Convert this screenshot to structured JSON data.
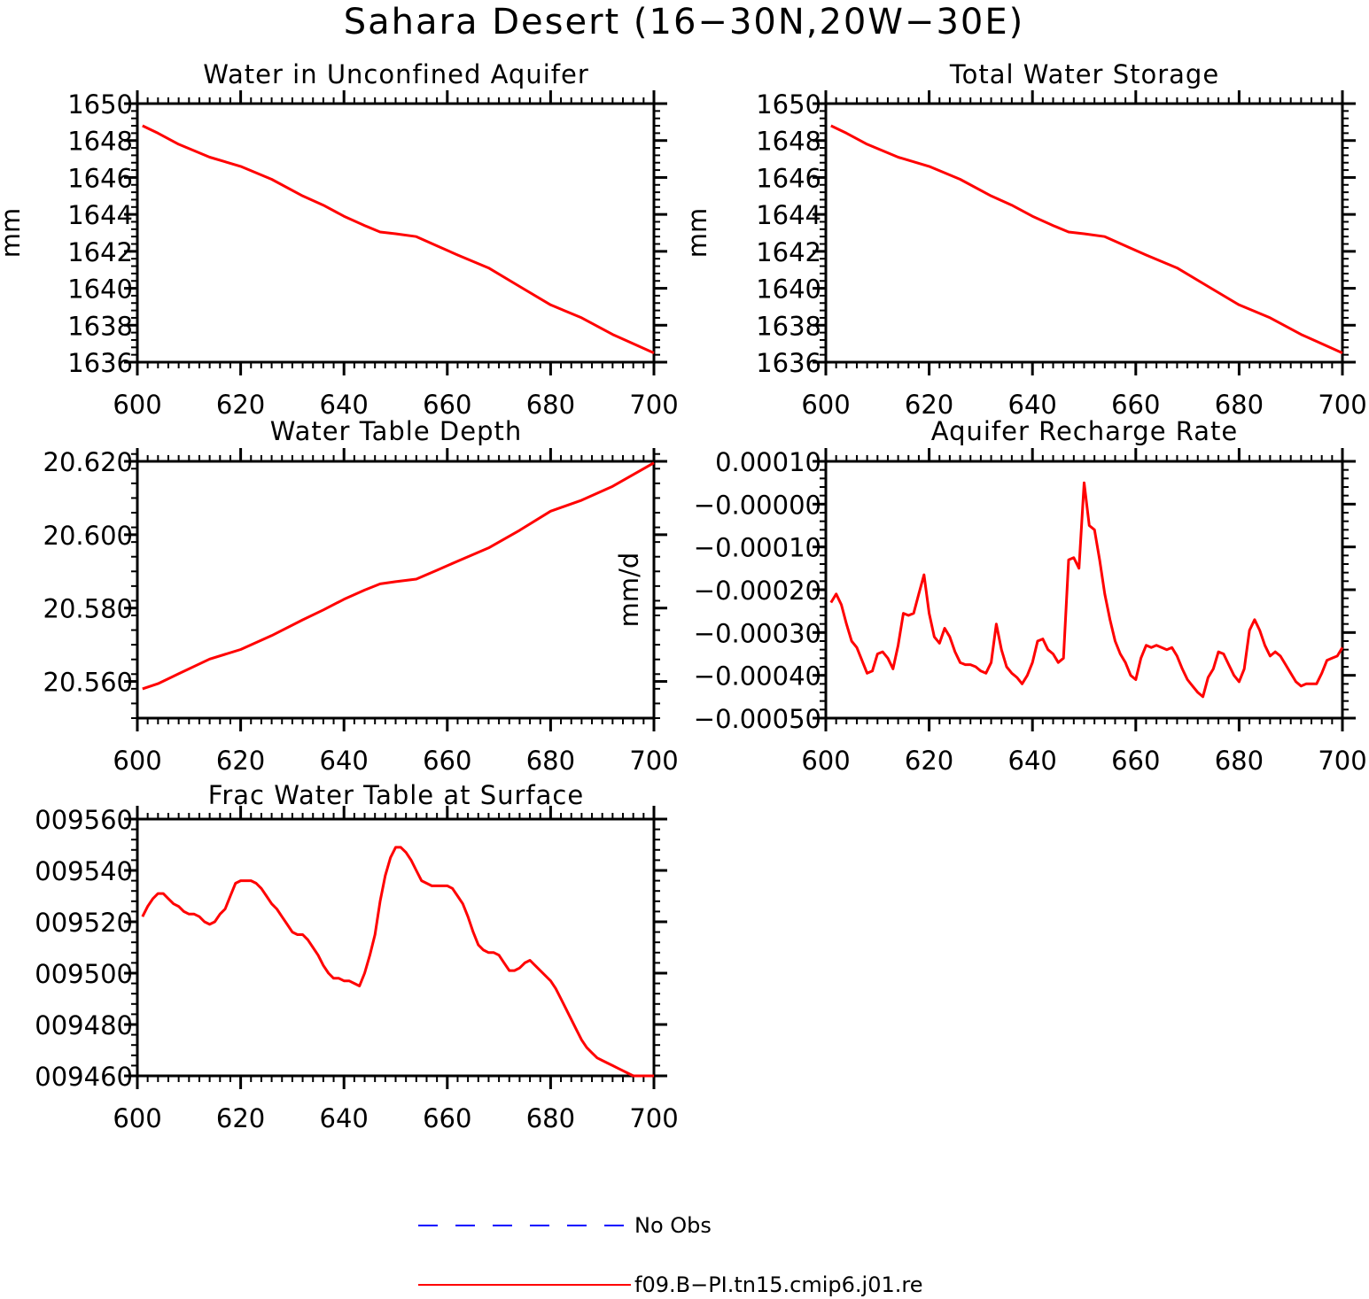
{
  "figure": {
    "title": "Sahara Desert (16−30N,20W−30E)",
    "colors": {
      "model": "#ff0000",
      "obs": "#0000ff",
      "axes": "#000000"
    }
  },
  "legend": [
    {
      "label": "No Obs",
      "style": "dashed",
      "color": "#0000ff"
    },
    {
      "label": "f09.B−PI.tn15.cmip6.j01.re",
      "style": "solid",
      "color": "#ff0000"
    }
  ],
  "chart_data": [
    {
      "type": "line",
      "title": "Water in Unconfined Aquifer",
      "ylabel": "mm",
      "xlim": [
        600,
        700
      ],
      "ylim": [
        1636,
        1650
      ],
      "xticks": [
        600,
        620,
        640,
        660,
        680,
        700
      ],
      "xtick_labels": [
        "600",
        "620",
        "640",
        "660",
        "680",
        "700"
      ],
      "yticks": [
        1636,
        1638,
        1640,
        1642,
        1644,
        1646,
        1648,
        1650
      ],
      "ytick_labels": [
        "1636",
        "1638",
        "1640",
        "1642",
        "1644",
        "1646",
        "1648",
        "1650"
      ],
      "series": [
        {
          "color": "#ff0000",
          "x": [
            601,
            604,
            608,
            614,
            620,
            626,
            632,
            636,
            640,
            644,
            647,
            650,
            654,
            658,
            662,
            668,
            674,
            680,
            686,
            692,
            700
          ],
          "y": [
            1648.8,
            1648.4,
            1647.8,
            1647.1,
            1646.6,
            1645.9,
            1645.0,
            1644.5,
            1643.9,
            1643.4,
            1643.05,
            1642.95,
            1642.8,
            1642.3,
            1641.8,
            1641.1,
            1640.1,
            1639.1,
            1638.4,
            1637.5,
            1636.5
          ]
        }
      ]
    },
    {
      "type": "line",
      "title": "Total Water Storage",
      "ylabel": "mm",
      "xlim": [
        600,
        700
      ],
      "ylim": [
        1636,
        1650
      ],
      "xticks": [
        600,
        620,
        640,
        660,
        680,
        700
      ],
      "xtick_labels": [
        "600",
        "620",
        "640",
        "660",
        "680",
        "700"
      ],
      "yticks": [
        1636,
        1638,
        1640,
        1642,
        1644,
        1646,
        1648,
        1650
      ],
      "ytick_labels": [
        "1636",
        "1638",
        "1640",
        "1642",
        "1644",
        "1646",
        "1648",
        "1650"
      ],
      "series": [
        {
          "color": "#ff0000",
          "x": [
            601,
            604,
            608,
            614,
            620,
            626,
            632,
            636,
            640,
            644,
            647,
            650,
            654,
            658,
            662,
            668,
            674,
            680,
            686,
            692,
            700
          ],
          "y": [
            1648.8,
            1648.4,
            1647.8,
            1647.1,
            1646.6,
            1645.9,
            1645.0,
            1644.5,
            1643.9,
            1643.4,
            1643.05,
            1642.95,
            1642.8,
            1642.3,
            1641.8,
            1641.1,
            1640.1,
            1639.1,
            1638.4,
            1637.5,
            1636.5
          ]
        }
      ]
    },
    {
      "type": "line",
      "title": "Water Table Depth",
      "ylabel": "",
      "xlim": [
        600,
        700
      ],
      "ylim": [
        20.55,
        20.62
      ],
      "xticks": [
        600,
        620,
        640,
        660,
        680,
        700
      ],
      "xtick_labels": [
        "600",
        "620",
        "640",
        "660",
        "680",
        "700"
      ],
      "yticks": [
        20.56,
        20.58,
        20.6,
        20.62
      ],
      "ytick_labels": [
        "20.560",
        "20.580",
        "20.600",
        "20.620"
      ],
      "series": [
        {
          "color": "#ff0000",
          "x": [
            601,
            604,
            608,
            614,
            620,
            626,
            632,
            636,
            640,
            644,
            647,
            650,
            654,
            658,
            662,
            668,
            674,
            680,
            686,
            692,
            700
          ],
          "y": [
            20.558,
            20.5594,
            20.5621,
            20.5661,
            20.5687,
            20.5725,
            20.5768,
            20.5795,
            20.5824,
            20.5849,
            20.5866,
            20.5872,
            20.5879,
            20.5903,
            20.5928,
            20.5964,
            20.6012,
            20.6064,
            20.6094,
            20.6132,
            20.6196
          ]
        }
      ]
    },
    {
      "type": "line",
      "title": "Aquifer Recharge Rate",
      "ylabel": "mm/d",
      "xlim": [
        600,
        700
      ],
      "ylim": [
        -0.0005,
        0.0001
      ],
      "xticks": [
        600,
        620,
        640,
        660,
        680,
        700
      ],
      "xtick_labels": [
        "600",
        "620",
        "640",
        "660",
        "680",
        "700"
      ],
      "yticks": [
        -0.0005,
        -0.0004,
        -0.0003,
        -0.0002,
        -0.0001,
        0.0,
        0.0001
      ],
      "ytick_labels": [
        "−0.00050",
        "−0.00040",
        "−0.00030",
        "−0.00020",
        "−0.00010",
        "−0.00000",
        "0.00010"
      ],
      "series": [
        {
          "color": "#ff0000",
          "x": [
            601,
            602,
            603,
            604,
            605,
            606,
            607,
            608,
            609,
            610,
            611,
            612,
            613,
            614,
            615,
            616,
            617,
            618,
            619,
            620,
            621,
            622,
            623,
            624,
            625,
            626,
            627,
            628,
            629,
            630,
            631,
            632,
            633,
            634,
            635,
            636,
            637,
            638,
            639,
            640,
            641,
            642,
            643,
            644,
            645,
            646,
            647,
            648,
            649,
            650,
            651,
            652,
            653,
            654,
            655,
            656,
            657,
            658,
            659,
            660,
            661,
            662,
            663,
            664,
            665,
            666,
            667,
            668,
            669,
            670,
            671,
            672,
            673,
            674,
            675,
            676,
            677,
            678,
            679,
            680,
            681,
            682,
            683,
            684,
            685,
            686,
            687,
            688,
            689,
            690,
            691,
            692,
            693,
            694,
            695,
            696,
            697,
            698,
            699,
            700
          ],
          "y": [
            -0.00023,
            -0.00021,
            -0.000235,
            -0.00028,
            -0.00032,
            -0.000335,
            -0.000365,
            -0.000395,
            -0.00039,
            -0.00035,
            -0.000345,
            -0.00036,
            -0.000385,
            -0.00033,
            -0.000255,
            -0.00026,
            -0.000255,
            -0.00021,
            -0.000165,
            -0.000255,
            -0.00031,
            -0.000325,
            -0.00029,
            -0.00031,
            -0.000345,
            -0.00037,
            -0.000375,
            -0.000375,
            -0.00038,
            -0.00039,
            -0.000395,
            -0.00037,
            -0.00028,
            -0.00034,
            -0.00038,
            -0.000395,
            -0.000405,
            -0.00042,
            -0.0004,
            -0.00037,
            -0.00032,
            -0.000315,
            -0.00034,
            -0.00035,
            -0.00037,
            -0.00036,
            -0.00013,
            -0.000125,
            -0.00015,
            5e-05,
            -5e-05,
            -6e-05,
            -0.00013,
            -0.00021,
            -0.00027,
            -0.00032,
            -0.00035,
            -0.00037,
            -0.0004,
            -0.00041,
            -0.00036,
            -0.00033,
            -0.000335,
            -0.00033,
            -0.000335,
            -0.00034,
            -0.000335,
            -0.000355,
            -0.000385,
            -0.00041,
            -0.000425,
            -0.00044,
            -0.00045,
            -0.000405,
            -0.000385,
            -0.000345,
            -0.00035,
            -0.000375,
            -0.0004,
            -0.000415,
            -0.000385,
            -0.000295,
            -0.00027,
            -0.000295,
            -0.00033,
            -0.000355,
            -0.000345,
            -0.000355,
            -0.000375,
            -0.000395,
            -0.000415,
            -0.000425,
            -0.00042,
            -0.00042,
            -0.00042,
            -0.000395,
            -0.000365,
            -0.00036,
            -0.000355,
            -0.000335
          ]
        }
      ]
    },
    {
      "type": "line",
      "title": "Frac Water Table at Surface",
      "ylabel": "",
      "xlim": [
        600,
        700
      ],
      "ylim": [
        0.00946,
        0.00956
      ],
      "xticks": [
        600,
        620,
        640,
        660,
        680,
        700
      ],
      "xtick_labels": [
        "600",
        "620",
        "640",
        "660",
        "680",
        "700"
      ],
      "yticks": [
        0.00946,
        0.00948,
        0.0095,
        0.00952,
        0.00954,
        0.00956
      ],
      "ytick_labels": [
        "009460",
        "009480",
        "009500",
        "009520",
        "009540",
        "009560"
      ],
      "series": [
        {
          "color": "#ff0000",
          "x": [
            601,
            602,
            603,
            604,
            605,
            606,
            607,
            608,
            609,
            610,
            611,
            612,
            613,
            614,
            615,
            616,
            617,
            618,
            619,
            620,
            621,
            622,
            623,
            624,
            625,
            626,
            627,
            628,
            629,
            630,
            631,
            632,
            633,
            634,
            635,
            636,
            637,
            638,
            639,
            640,
            641,
            642,
            643,
            644,
            645,
            646,
            647,
            648,
            649,
            650,
            651,
            652,
            653,
            654,
            655,
            656,
            657,
            658,
            659,
            660,
            661,
            662,
            663,
            664,
            665,
            666,
            667,
            668,
            669,
            670,
            671,
            672,
            673,
            674,
            675,
            676,
            677,
            678,
            679,
            680,
            681,
            682,
            683,
            684,
            685,
            686,
            687,
            688,
            689,
            690,
            691,
            692,
            693,
            694,
            695,
            696,
            697,
            698,
            699,
            700
          ],
          "y": [
            0.009522,
            0.009526,
            0.009529,
            0.009531,
            0.009531,
            0.009529,
            0.009527,
            0.009526,
            0.009524,
            0.009523,
            0.009523,
            0.009522,
            0.00952,
            0.009519,
            0.00952,
            0.009523,
            0.009525,
            0.00953,
            0.009535,
            0.009536,
            0.009536,
            0.009536,
            0.009535,
            0.009533,
            0.00953,
            0.009527,
            0.009525,
            0.009522,
            0.009519,
            0.009516,
            0.009515,
            0.009515,
            0.009513,
            0.00951,
            0.009507,
            0.009503,
            0.0095,
            0.009498,
            0.009498,
            0.009497,
            0.009497,
            0.009496,
            0.009495,
            0.0095,
            0.009507,
            0.009515,
            0.009528,
            0.009538,
            0.009545,
            0.009549,
            0.009549,
            0.009547,
            0.009544,
            0.00954,
            0.009536,
            0.009535,
            0.009534,
            0.009534,
            0.009534,
            0.009534,
            0.009533,
            0.00953,
            0.009527,
            0.009522,
            0.009516,
            0.009511,
            0.009509,
            0.009508,
            0.009508,
            0.009507,
            0.009504,
            0.009501,
            0.009501,
            0.009502,
            0.009504,
            0.009505,
            0.009503,
            0.009501,
            0.009499,
            0.009497,
            0.009494,
            0.00949,
            0.009486,
            0.009482,
            0.009478,
            0.009474,
            0.009471,
            0.009469,
            0.009467,
            0.009466,
            0.009465,
            0.009464,
            0.009463,
            0.009462,
            0.009461,
            0.00946,
            0.00946,
            0.00946,
            0.00946,
            0.00946
          ]
        }
      ]
    }
  ]
}
